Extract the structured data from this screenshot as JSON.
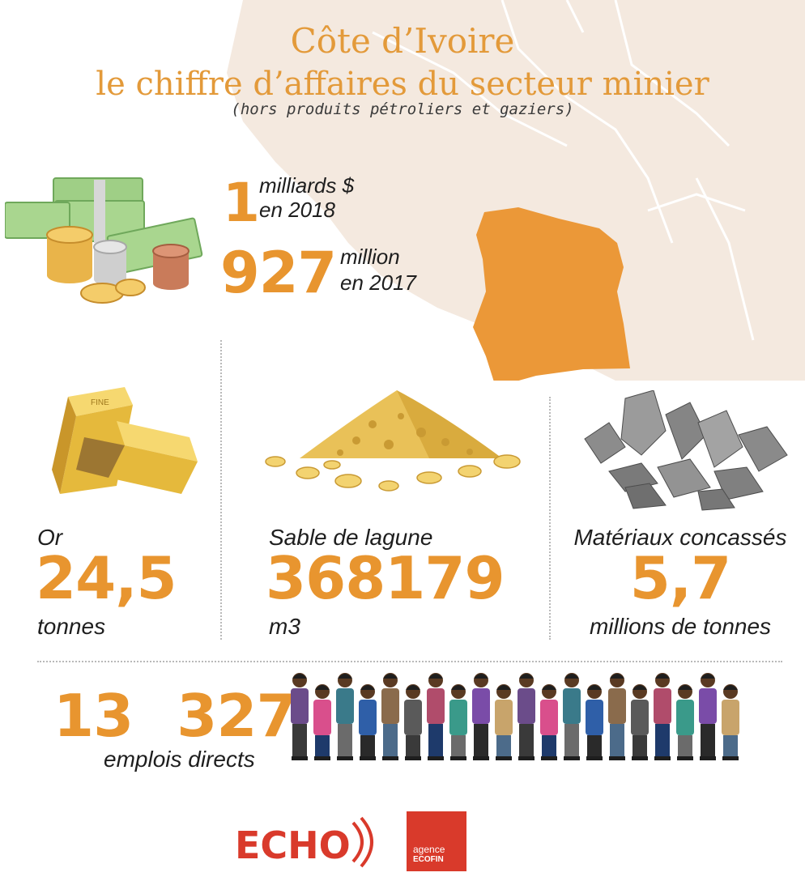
{
  "header": {
    "title": "Côte d’Ivoire",
    "subtitle": "le chiffre d’affaires du secteur minier",
    "note": "(hors produits pétroliers et gaziers)"
  },
  "revenue": {
    "stat_2018": {
      "value": "1",
      "unit": "milliards $",
      "year": "en 2018"
    },
    "stat_2017": {
      "value": "927",
      "unit": "million",
      "year": "en 2017"
    }
  },
  "resources": [
    {
      "label": "Or",
      "value": "24,5",
      "unit": "tonnes"
    },
    {
      "label": "Sable de lagune",
      "value": "368179",
      "unit": "m3"
    },
    {
      "label": "Matériaux concassés",
      "value": "5,7",
      "unit": "millions de tonnes"
    }
  ],
  "employment": {
    "value": "13 327",
    "label": "emplois directs"
  },
  "logos": {
    "echo": "ECHO",
    "ecofin_line1": "agence",
    "ecofin_line2": "ECOFIN"
  },
  "colors": {
    "accent": "#e8952f",
    "map_background": "#f4e9df",
    "country_highlight": "#eb9838",
    "text": "#1e1e1e",
    "logo_red": "#d93a2b"
  },
  "icons": [
    "money-stack-icon",
    "gold-bars-icon",
    "sand-pile-icon",
    "crushed-rocks-icon",
    "workers-crowd-icon"
  ]
}
